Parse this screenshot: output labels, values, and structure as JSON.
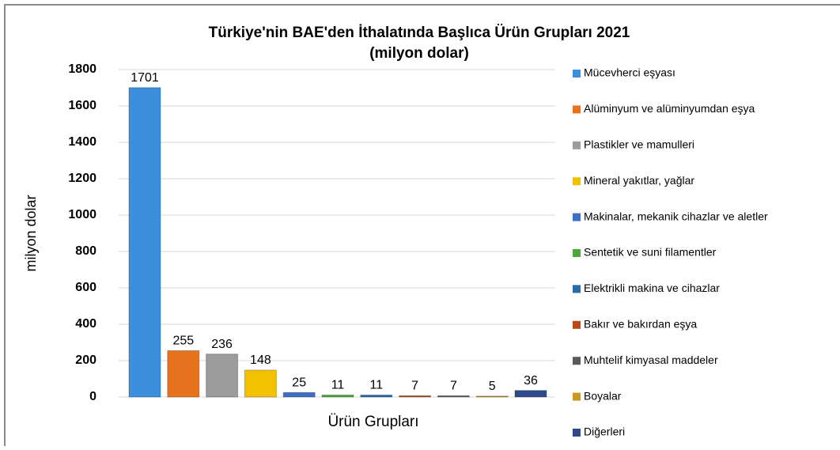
{
  "chart_data": {
    "type": "bar",
    "title": "Türkiye'nin BAE'den İthalatında Başlıca Ürün Grupları 2021",
    "subtitle": "(milyon dolar)",
    "y_label": "milyon dolar",
    "x_label": "Ürün Grupları",
    "categories": [
      "Mücevherci eşyası",
      "Alüminyum ve alüminyumdan eşya",
      "Plastikler ve mamulleri",
      "Mineral yakıtlar, yağlar",
      "Makinalar, mekanik cihazlar ve aletler",
      "Sentetik ve suni filamentler",
      "Elektrikli makina ve cihazlar",
      "Bakır ve bakırdan eşya",
      "Muhtelif kimyasal maddeler",
      "Boyalar",
      "Diğerleri"
    ],
    "values": [
      1701,
      255,
      236,
      148,
      25,
      11,
      11,
      7,
      7,
      5,
      36
    ],
    "colors": [
      "#3c8fdc",
      "#e8731f",
      "#9c9c9c",
      "#f2c200",
      "#3f6fc4",
      "#4aa83a",
      "#2a6aa6",
      "#b84a1a",
      "#5a5a5a",
      "#c89a20",
      "#2d4a8a"
    ],
    "ylim": [
      0,
      1800
    ],
    "yticks": [
      0,
      200,
      400,
      600,
      800,
      1000,
      1200,
      1400,
      1600,
      1800
    ],
    "grid": true,
    "legend": "right"
  }
}
